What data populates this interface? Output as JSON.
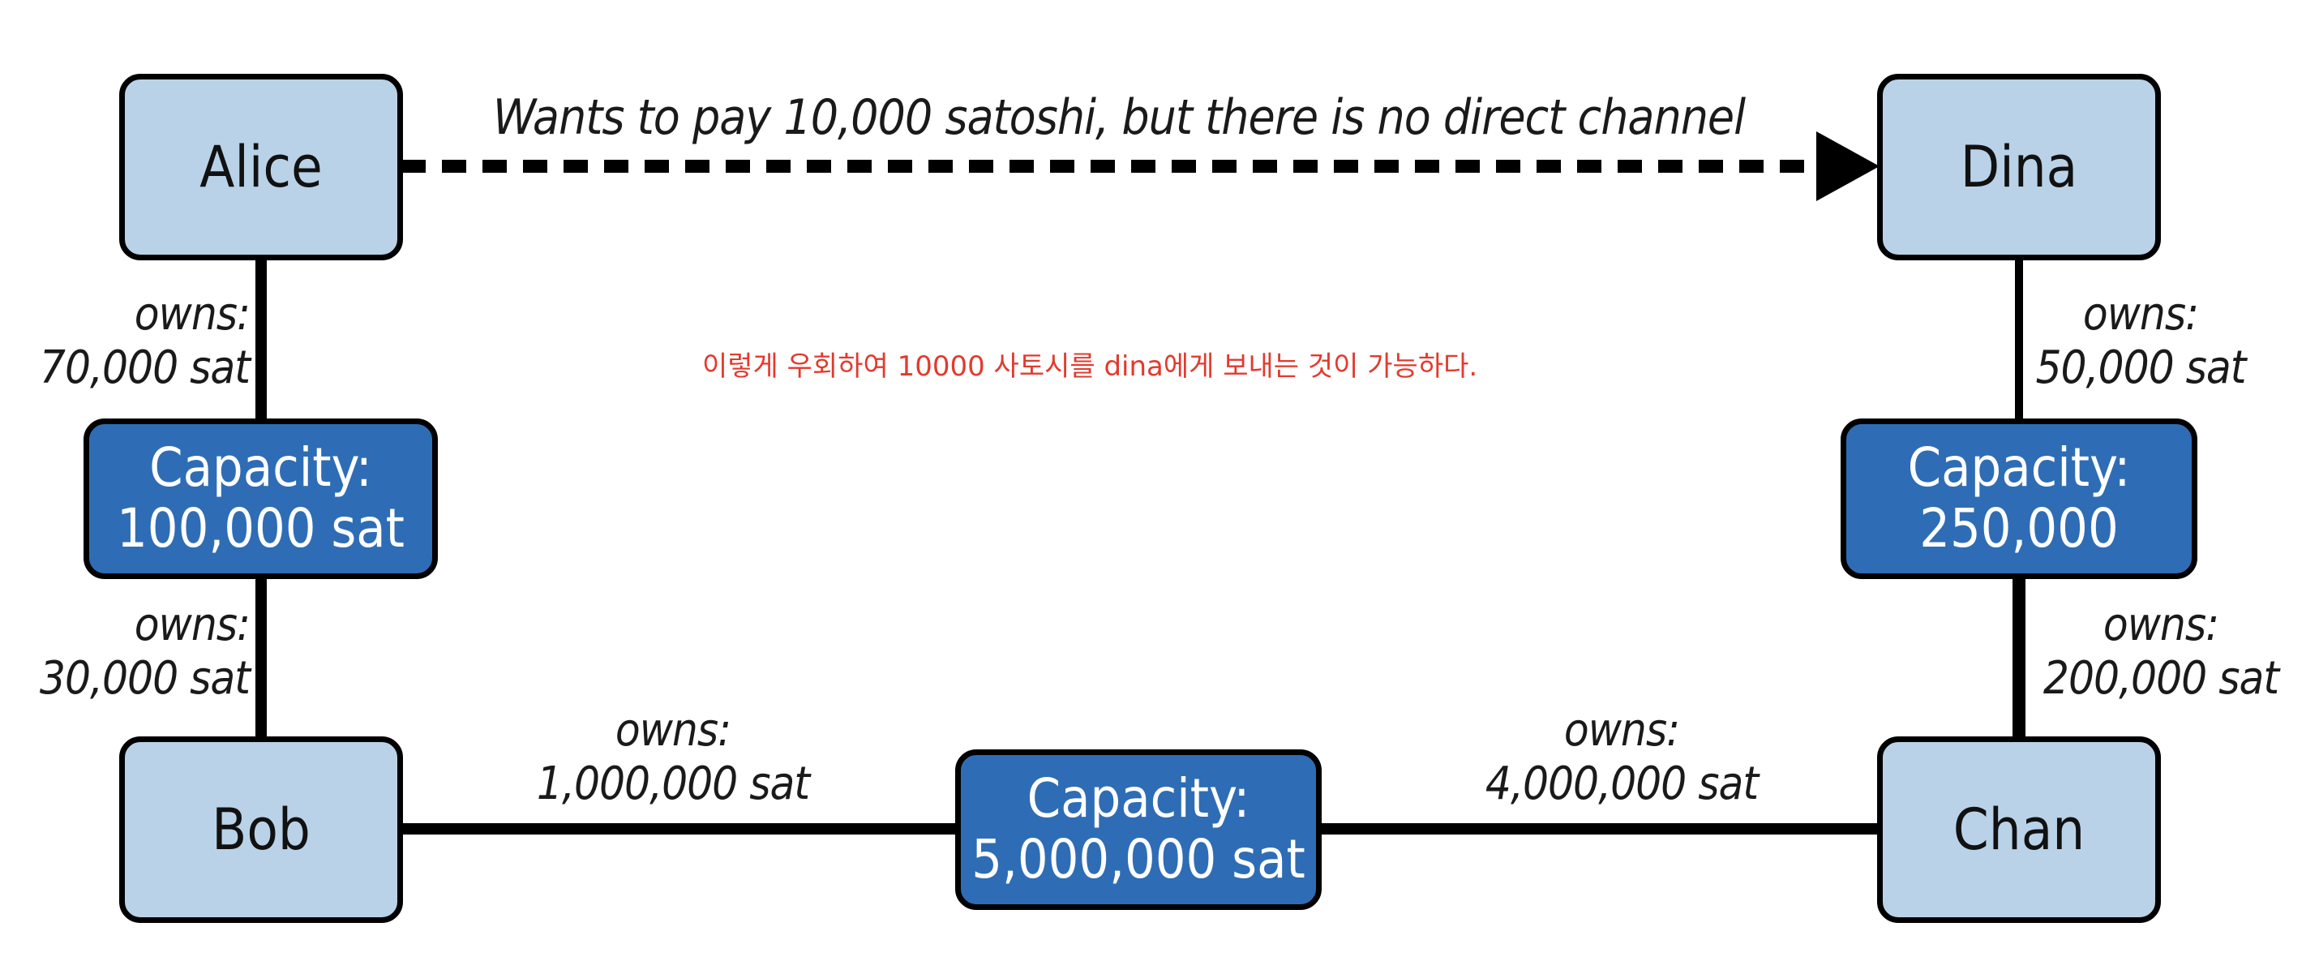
{
  "nodes": {
    "alice": "Alice",
    "dina": "Dina",
    "bob": "Bob",
    "chan": "Chan"
  },
  "channels": {
    "alice_bob": {
      "capacity": "Capacity:\n100,000 sat",
      "owns_alice": "owns:\n70,000 sat",
      "owns_bob": "owns:\n30,000 sat"
    },
    "bob_chan": {
      "capacity": "Capacity:\n5,000,000 sat",
      "owns_bob": "owns:\n1,000,000 sat",
      "owns_chan": "owns:\n4,000,000 sat"
    },
    "chan_dina": {
      "capacity": "Capacity:\n250,000",
      "owns_dina": "owns:\n50,000 sat",
      "owns_chan": "owns:\n200,000 sat"
    }
  },
  "payment_label": "Wants to pay 10,000 satoshi, but there is no direct channel",
  "annotation": "이렇게 우회하여 10000 사토시를 dina에게 보내는 것이 가능하다.",
  "colors": {
    "node_fill": "#b9d2e8",
    "capacity_fill": "#2e6db5",
    "line": "#000000",
    "annotation": "#e23a2e"
  }
}
